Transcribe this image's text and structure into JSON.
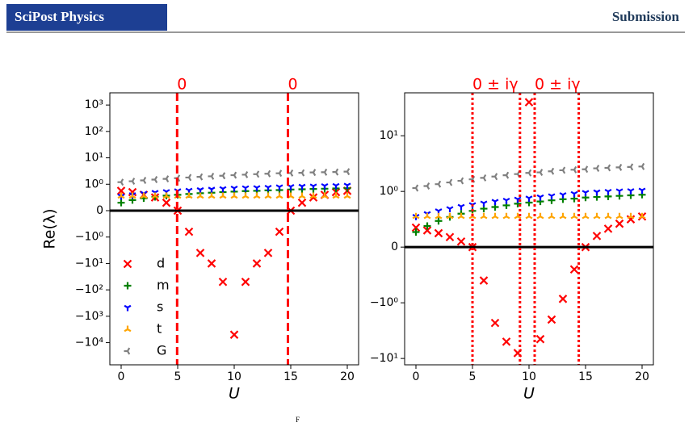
{
  "header": {
    "journal": "SciPost Physics",
    "label": "Submission"
  },
  "footer": {
    "fragment": "F"
  },
  "chart_data": [
    {
      "type": "scatter",
      "ylabel": "Re(λ)",
      "xlabel": "U",
      "yscale": "symlog",
      "linthresh": 1,
      "xlim": [
        -1,
        21
      ],
      "xticks": [
        0,
        5,
        10,
        15,
        20
      ],
      "ylim": [
        -69000,
        2900
      ],
      "yticks": [
        {
          "value": -10000,
          "label": "−10⁴"
        },
        {
          "value": -1000,
          "label": "−10³"
        },
        {
          "value": -100,
          "label": "−10²"
        },
        {
          "value": -10,
          "label": "−10¹"
        },
        {
          "value": -1,
          "label": "−10⁰"
        },
        0,
        {
          "value": 1,
          "label": "10⁰"
        },
        {
          "value": 10,
          "label": "10¹"
        },
        {
          "value": 100,
          "label": "10²"
        },
        {
          "value": 1000,
          "label": "10³"
        }
      ],
      "hline": 0,
      "vline_style": "dashed",
      "vlines": [
        {
          "x": 4.95,
          "label": "0"
        },
        {
          "x": 14.75,
          "label": "0"
        }
      ],
      "legend": "lower left",
      "x": [
        0,
        1,
        2,
        3,
        4,
        5,
        6,
        7,
        8,
        9,
        10,
        11,
        12,
        13,
        14,
        15,
        16,
        17,
        18,
        19,
        20
      ],
      "series": [
        {
          "name": "d",
          "color": "#ff0000",
          "marker": "x",
          "values": [
            0.75,
            0.7,
            0.6,
            0.5,
            0.3,
            0,
            -0.8,
            -4,
            -10,
            -50,
            -5000,
            -50,
            -10,
            -4,
            -0.8,
            0,
            0.3,
            0.5,
            0.6,
            0.7,
            0.75
          ]
        },
        {
          "name": "m",
          "color": "#008000",
          "marker": "plus",
          "values": [
            0.3,
            0.4,
            0.47,
            0.52,
            0.57,
            0.6,
            0.63,
            0.66,
            0.68,
            0.7,
            0.72,
            0.74,
            0.75,
            0.77,
            0.78,
            0.8,
            0.81,
            0.82,
            0.83,
            0.84,
            0.85
          ]
        },
        {
          "name": "s",
          "color": "#0000ff",
          "marker": "tri_down",
          "values": [
            0.55,
            0.6,
            0.65,
            0.69,
            0.72,
            0.75,
            0.77,
            0.79,
            0.81,
            0.83,
            0.85,
            0.86,
            0.87,
            0.88,
            0.9,
            0.91,
            0.92,
            0.93,
            0.94,
            0.95,
            0.96
          ]
        },
        {
          "name": "t",
          "color": "#ffa500",
          "marker": "tri_up",
          "values": [
            0.55,
            0.55,
            0.55,
            0.55,
            0.55,
            0.55,
            0.55,
            0.55,
            0.55,
            0.55,
            0.55,
            0.55,
            0.55,
            0.55,
            0.55,
            0.55,
            0.55,
            0.55,
            0.55,
            0.55,
            0.55
          ]
        },
        {
          "name": "G",
          "color": "#808080",
          "marker": "tri_left",
          "values": [
            1.2,
            1.3,
            1.4,
            1.5,
            1.6,
            1.7,
            1.8,
            1.9,
            2,
            2.1,
            2.2,
            2.3,
            2.4,
            2.5,
            2.6,
            2.65,
            2.7,
            2.8,
            2.85,
            2.9,
            3
          ]
        }
      ]
    },
    {
      "type": "scatter",
      "xlabel": "U",
      "yscale": "symlog",
      "linthresh": 1,
      "xlim": [
        -1,
        21
      ],
      "xticks": [
        0,
        5,
        10,
        15,
        20
      ],
      "ylim": [
        -13,
        59
      ],
      "yticks": [
        {
          "value": -10,
          "label": "−10¹"
        },
        {
          "value": -1,
          "label": "−10⁰"
        },
        0,
        {
          "value": 1,
          "label": "10⁰"
        },
        {
          "value": 10,
          "label": "10¹"
        }
      ],
      "hline": 0,
      "vline_style": "dotted",
      "vlines": [
        {
          "x": 5,
          "label": "0 ± iγ"
        },
        {
          "x": 9.2
        },
        {
          "x": 10.5,
          "label": "0 ± iγ"
        },
        {
          "x": 14.4
        }
      ],
      "x": [
        0,
        1,
        2,
        3,
        4,
        5,
        6,
        7,
        8,
        9,
        10,
        11,
        12,
        13,
        14,
        15,
        16,
        17,
        18,
        19,
        20
      ],
      "series": [
        {
          "name": "d",
          "color": "#ff0000",
          "marker": "x",
          "values": [
            0.35,
            0.3,
            0.25,
            0.18,
            0.1,
            0,
            -0.6,
            -2.3,
            -5,
            -8,
            40,
            -4.5,
            -2,
            -0.93,
            -0.4,
            0,
            0.2,
            0.33,
            0.42,
            0.5,
            0.55
          ]
        },
        {
          "name": "m",
          "color": "#008000",
          "marker": "plus",
          "values": [
            0.27,
            0.38,
            0.47,
            0.54,
            0.6,
            0.65,
            0.69,
            0.72,
            0.75,
            0.78,
            0.8,
            0.82,
            0.84,
            0.86,
            0.87,
            0.89,
            0.9,
            0.91,
            0.92,
            0.93,
            0.94
          ]
        },
        {
          "name": "s",
          "color": "#0000ff",
          "marker": "tri_down",
          "values": [
            0.55,
            0.6,
            0.65,
            0.69,
            0.73,
            0.76,
            0.79,
            0.82,
            0.84,
            0.86,
            0.88,
            0.9,
            0.92,
            0.94,
            0.96,
            0.98,
            0.99,
            1.0,
            1.02,
            1.03,
            1.05
          ]
        },
        {
          "name": "t",
          "color": "#ffa500",
          "marker": "tri_up",
          "values": [
            0.55,
            0.55,
            0.55,
            0.55,
            0.55,
            0.55,
            0.55,
            0.55,
            0.55,
            0.55,
            0.55,
            0.55,
            0.55,
            0.55,
            0.55,
            0.55,
            0.55,
            0.55,
            0.55,
            0.55,
            0.55
          ]
        },
        {
          "name": "G",
          "color": "#808080",
          "marker": "tri_left",
          "values": [
            1.15,
            1.25,
            1.35,
            1.45,
            1.55,
            1.65,
            1.75,
            1.85,
            1.95,
            2.05,
            2.15,
            2.2,
            2.3,
            2.4,
            2.45,
            2.5,
            2.6,
            2.65,
            2.7,
            2.75,
            2.8
          ]
        }
      ]
    }
  ]
}
